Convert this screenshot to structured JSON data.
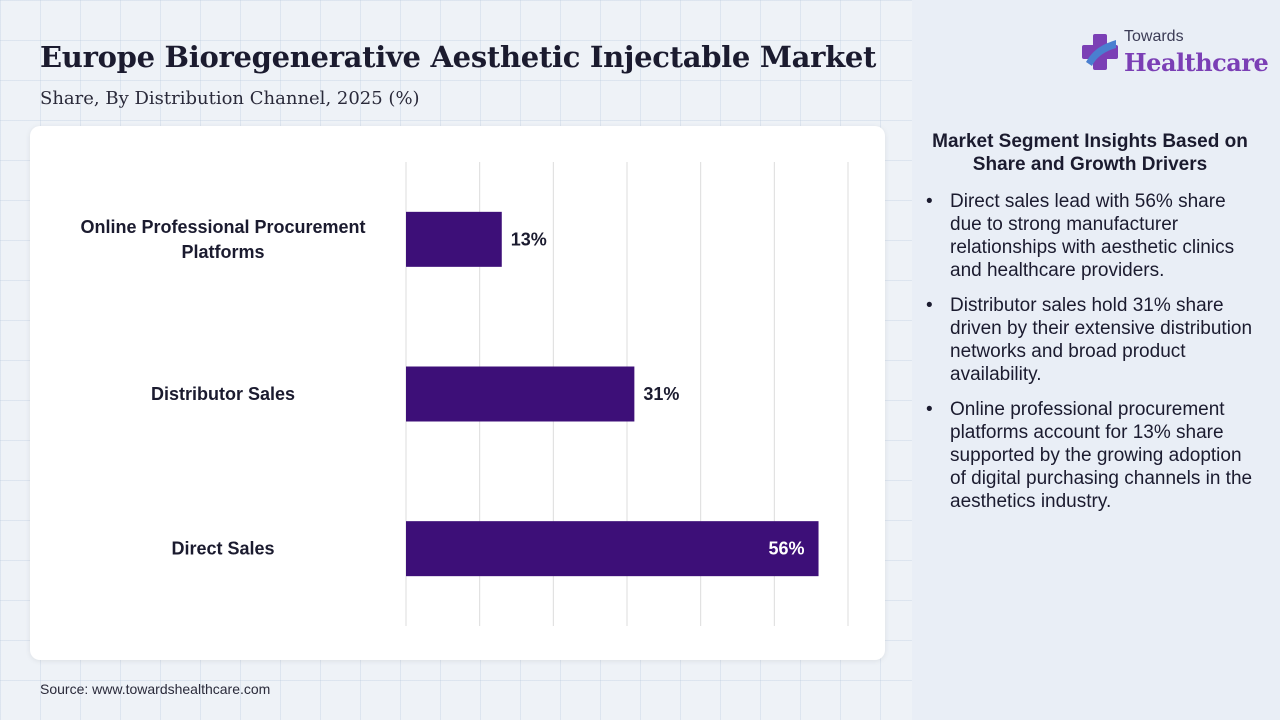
{
  "header": {
    "title": "Europe Bioregenerative Aesthetic Injectable Market",
    "subtitle": "Share, By Distribution Channel, 2025 (%)"
  },
  "logo": {
    "top_text": "Towards",
    "main_text": "Healthcare"
  },
  "chart_data": {
    "type": "bar",
    "orientation": "horizontal",
    "categories": [
      "Online Professional Procurement Platforms",
      "Distributor Sales",
      "Direct Sales"
    ],
    "values": [
      13,
      31,
      56
    ],
    "data_labels": [
      "13%",
      "31%",
      "56%"
    ],
    "xlim": [
      0,
      60
    ],
    "grid": true,
    "bar_color": "#3d0f78"
  },
  "insights": {
    "title": "Market Segment Insights Based on Share and Growth Drivers",
    "bullet_char": "•",
    "items": [
      "Direct sales lead with 56% share due to strong manufacturer relationships with aesthetic clinics and healthcare providers.",
      "Distributor sales hold 31% share driven by their extensive distribution networks and broad product availability.",
      "Online professional procurement platforms account for 13% share supported by the growing adoption of digital purchasing channels in the aesthetics industry."
    ]
  },
  "footer": {
    "source": "Source: www.towardshealthcare.com"
  },
  "colors": {
    "accent": "#7b3fb5",
    "bar": "#3d0f78",
    "logo_blue": "#4a7fd0"
  }
}
